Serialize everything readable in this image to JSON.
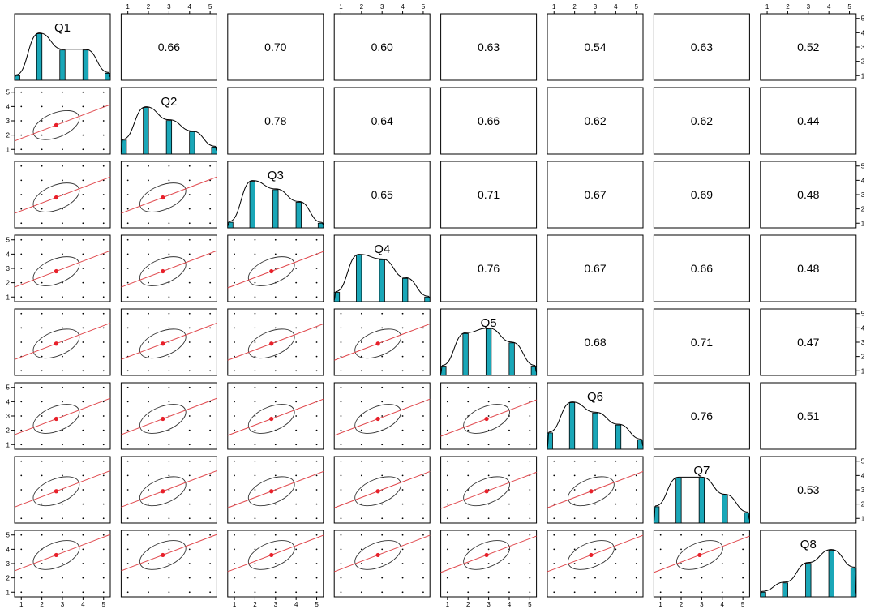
{
  "chart_data": {
    "type": "scatter-matrix",
    "variables": [
      "Q1",
      "Q2",
      "Q3",
      "Q4",
      "Q5",
      "Q6",
      "Q7",
      "Q8"
    ],
    "axis_ticks": [
      1,
      2,
      3,
      4,
      5
    ],
    "axis_range": [
      1,
      5
    ],
    "correlations": [
      [
        null,
        "0.66",
        "0.70",
        "0.60",
        "0.63",
        "0.54",
        "0.63",
        "0.52"
      ],
      [
        null,
        null,
        "0.78",
        "0.64",
        "0.66",
        "0.62",
        "0.62",
        "0.44"
      ],
      [
        null,
        null,
        null,
        "0.65",
        "0.71",
        "0.67",
        "0.69",
        "0.48"
      ],
      [
        null,
        null,
        null,
        null,
        "0.76",
        "0.67",
        "0.66",
        "0.48"
      ],
      [
        null,
        null,
        null,
        null,
        null,
        "0.68",
        "0.71",
        "0.47"
      ],
      [
        null,
        null,
        null,
        null,
        null,
        null,
        "0.76",
        "0.51"
      ],
      [
        null,
        null,
        null,
        null,
        null,
        null,
        null,
        "0.53"
      ],
      [
        null,
        null,
        null,
        null,
        null,
        null,
        null,
        null
      ]
    ],
    "histograms": [
      [
        0.1,
        1.0,
        0.65,
        0.65,
        0.15
      ],
      [
        0.3,
        1.0,
        0.72,
        0.48,
        0.15
      ],
      [
        0.12,
        1.0,
        0.82,
        0.55,
        0.1
      ],
      [
        0.2,
        1.0,
        0.9,
        0.5,
        0.1
      ],
      [
        0.2,
        0.9,
        1.0,
        0.7,
        0.2
      ],
      [
        0.35,
        1.0,
        0.78,
        0.52,
        0.2
      ],
      [
        0.35,
        0.97,
        0.97,
        0.6,
        0.22
      ],
      [
        0.1,
        0.3,
        0.72,
        1.0,
        0.62
      ]
    ],
    "means": [
      2.7,
      2.7,
      2.8,
      2.8,
      2.9,
      2.8,
      2.9,
      3.6
    ],
    "colors": {
      "bar": "#1aa7b8",
      "bar_stroke": "#000000",
      "fit_line": "#e0474c",
      "mean_point": "#e8202a",
      "ellipse": "#333333",
      "density": "#000000",
      "frame": "#000000"
    },
    "grid": false
  }
}
